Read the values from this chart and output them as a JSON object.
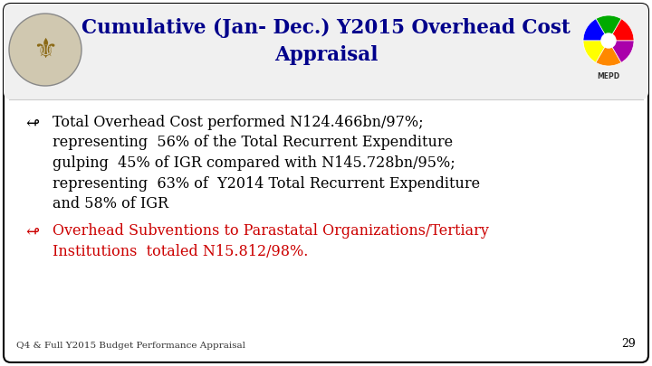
{
  "title_line1": "Cumulative (Jan- Dec.) Y2015 Overhead Cost",
  "title_line2": "Appraisal",
  "title_color": "#00008B",
  "title_fontsize": 15.5,
  "bg_color": "#FFFFFF",
  "border_color": "#000000",
  "bullet_symbol": "↫",
  "bullet1_color": "#000000",
  "bullet2_color": "#CC0000",
  "bullet1_lines": [
    "Total Overhead Cost performed N124.466bn/97%;",
    "representing  56% of the Total Recurrent Expenditure",
    "gulping  45% of IGR compared with N145.728bn/95%;",
    "representing  63% of  Y2014 Total Recurrent Expenditure",
    "and 58% of IGR"
  ],
  "bullet2_lines": [
    "Overhead Subventions to Parastatal Organizations/Tertiary",
    "Institutions  totaled N15.812/98%."
  ],
  "footer_text": "Q4 & Full Y2015 Budget Performance Appraisal",
  "footer_fontsize": 7.5,
  "footer_color": "#333333",
  "page_number": "29",
  "page_number_color": "#000000",
  "body_fontsize": 11.5,
  "bullet_fontsize": 13.0,
  "body_font": "DejaVu Serif"
}
